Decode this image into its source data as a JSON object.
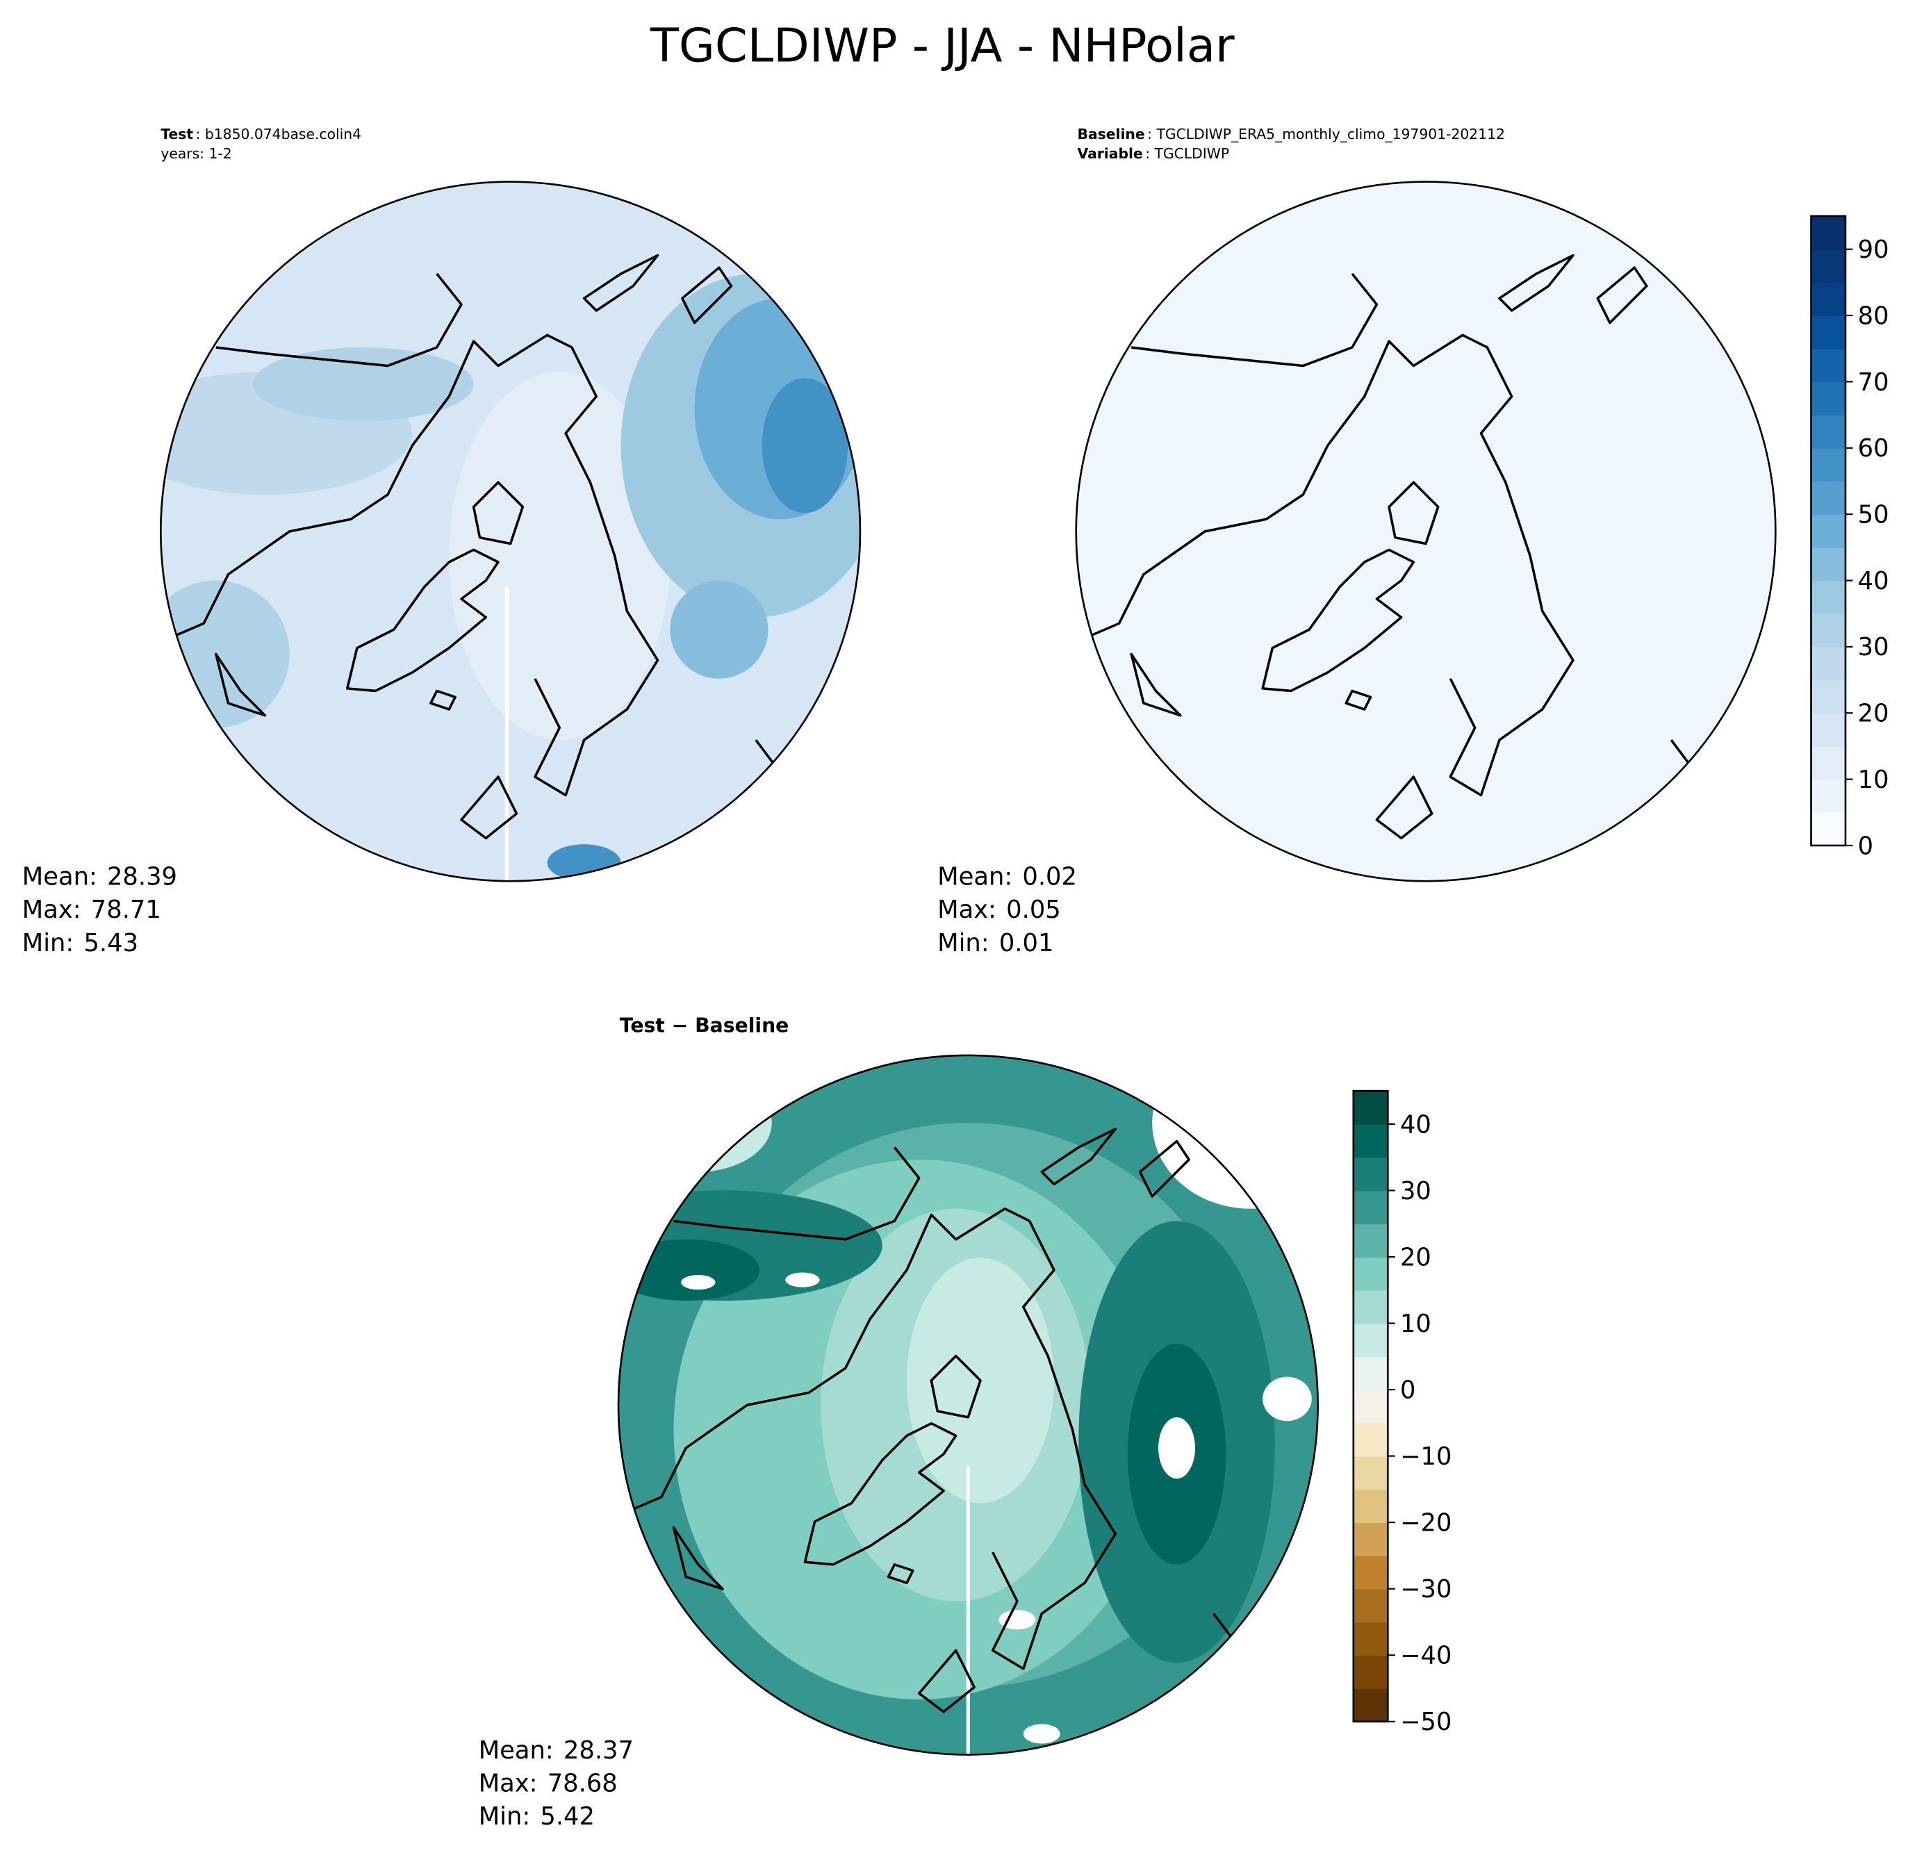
{
  "title": "TGCLDIWP - JJA - NHPolar",
  "panels": [
    {
      "header": [
        {
          "label": "Test",
          "text": ": b1850.074base.colin4"
        },
        {
          "text": "years: 1-2"
        }
      ],
      "stats": [
        {
          "label": "Mean:",
          "value": 28.39
        },
        {
          "label": "Max:",
          "value": 78.71
        },
        {
          "label": "Min:",
          "value": 5.43
        }
      ]
    },
    {
      "header": [
        {
          "label": "Baseline",
          "text": ": TGCLDIWP_ERA5_monthly_climo_197901-202112"
        },
        {
          "label": "Variable",
          "text": ": TGCLDIWP"
        }
      ],
      "stats": [
        {
          "label": "Mean:",
          "value": 0.02
        },
        {
          "label": "Max:",
          "value": 0.05
        },
        {
          "label": "Min:",
          "value": 0.01
        }
      ]
    },
    {
      "header": [
        {
          "label": "Test − Baseline"
        }
      ],
      "stats": [
        {
          "label": "Mean:",
          "value": 28.37
        },
        {
          "label": "Max:",
          "value": 78.68
        },
        {
          "label": "Min:",
          "value": 5.42
        }
      ]
    }
  ],
  "colorbars": [
    {
      "lim": [
        0,
        95
      ],
      "ticks": [
        0,
        10,
        20,
        30,
        40,
        50,
        60,
        70,
        80,
        90
      ],
      "colors": [
        "#f7fbff",
        "#ecf4fb",
        "#e2edf8",
        "#d7e6f5",
        "#cde0f1",
        "#c1d9ed",
        "#b0d2e7",
        "#9ecae1",
        "#87bddc",
        "#6baed6",
        "#57a0ce",
        "#4292c6",
        "#3282be",
        "#2171b5",
        "#1663aa",
        "#08519c",
        "#084286",
        "#083877",
        "#08306b"
      ]
    },
    {
      "lim": [
        -50,
        45
      ],
      "ticks": [
        {
          "value": -50,
          "label": "−50"
        },
        {
          "value": -40,
          "label": "−40"
        },
        {
          "value": -30,
          "label": "−30"
        },
        {
          "value": -20,
          "label": "−20"
        },
        {
          "value": -10,
          "label": "−10"
        },
        0,
        10,
        20,
        30,
        40
      ],
      "colors": [
        "#5e3306",
        "#7a4608",
        "#915a0f",
        "#a96d1f",
        "#bf812d",
        "#d0a157",
        "#dfc27d",
        "#ebd7a1",
        "#f6e8c3",
        "#f5f1e7",
        "#e8f2f0",
        "#c7eae5",
        "#a5dbd3",
        "#80cdc1",
        "#5bb2a8",
        "#35978f",
        "#1b7f77",
        "#01665e",
        "#024e44"
      ]
    }
  ]
}
